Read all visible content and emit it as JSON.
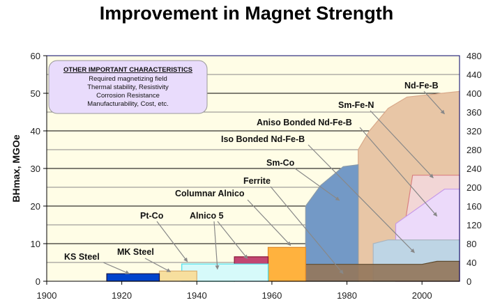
{
  "chart_data": {
    "type": "area",
    "title": "Improvement in Magnet Strength",
    "xlabel": "",
    "ylabel": "BHmax, MGOe",
    "y2label": "",
    "xlim": [
      1900,
      2010
    ],
    "ylim": [
      0,
      60
    ],
    "y2lim": [
      0,
      480
    ],
    "x_ticks": [
      "1900",
      "1920",
      "1940",
      "1960",
      "1980",
      "2000"
    ],
    "y_ticks": [
      "0",
      "10",
      "20",
      "30",
      "40",
      "50",
      "60"
    ],
    "y2_ticks": [
      "0",
      "40",
      "80",
      "120",
      "160",
      "200",
      "240",
      "280",
      "320",
      "360",
      "400",
      "440",
      "480"
    ],
    "grid": true,
    "legend": "none",
    "series": [
      {
        "name": "Nd-Fe-B",
        "color": "#e8c6a6",
        "stroke": "#d9a98a",
        "points": [
          [
            1983,
            0
          ],
          [
            1983,
            35
          ],
          [
            1986,
            40
          ],
          [
            1991,
            46
          ],
          [
            1996,
            49
          ],
          [
            2010,
            50.5
          ],
          [
            2010,
            0
          ]
        ]
      },
      {
        "name": "Sm-Co",
        "color": "#7399c6",
        "stroke": "#8a9aa8",
        "points": [
          [
            1969,
            0
          ],
          [
            1969,
            20
          ],
          [
            1973,
            25.5
          ],
          [
            1979,
            30.5
          ],
          [
            1983,
            31
          ],
          [
            1983,
            0
          ]
        ]
      },
      {
        "name": "Sm-Fe-N",
        "color": "#f2d6d6",
        "stroke": "#d98080",
        "points": [
          [
            1993,
            0
          ],
          [
            1997.5,
            28.2
          ],
          [
            2010,
            28.2
          ],
          [
            2010,
            0
          ]
        ]
      },
      {
        "name": "Aniso Bonded Nd-Fe-B",
        "color": "#ecdafa",
        "stroke": "#c79ae8",
        "points": [
          [
            1993,
            0
          ],
          [
            1993,
            15.3
          ],
          [
            2006,
            24.5
          ],
          [
            2010,
            24.5
          ],
          [
            2010,
            0
          ]
        ]
      },
      {
        "name": "Iso Bonded Nd-Fe-B",
        "color": "#bed5e5",
        "stroke": "#a9b5c0",
        "points": [
          [
            1987,
            0
          ],
          [
            1987,
            10
          ],
          [
            1991,
            11
          ],
          [
            2010,
            11
          ],
          [
            2010,
            0
          ]
        ]
      },
      {
        "name": "Ferrite",
        "color": "#94775c",
        "stroke": "#5e4a2e",
        "points": [
          [
            1960,
            0
          ],
          [
            1960,
            4.5
          ],
          [
            2000,
            4.5
          ],
          [
            2004,
            5.3
          ],
          [
            2010,
            5.3
          ],
          [
            2010,
            0
          ]
        ]
      },
      {
        "name": "Columnar Alnico",
        "color": "#ffb23e",
        "stroke": "#e08a2a",
        "points": [
          [
            1959,
            0
          ],
          [
            1959,
            9
          ],
          [
            1969,
            9
          ],
          [
            1969,
            0
          ]
        ]
      },
      {
        "name": "Alnico 5 (1950s)",
        "color": "#c24672",
        "stroke": "#8a1a3a",
        "points": [
          [
            1950,
            0
          ],
          [
            1950,
            6.5
          ],
          [
            1959,
            6.5
          ],
          [
            1959,
            0
          ]
        ]
      },
      {
        "name": "Alnico 5 (1940s)",
        "color": "#3ba14a",
        "stroke": "#1a6a25",
        "points": [
          [
            1940,
            0
          ],
          [
            1940,
            3.9
          ],
          [
            1950,
            3.9
          ],
          [
            1950,
            0
          ]
        ]
      },
      {
        "name": "Pt-Co",
        "color": "#d6fafa",
        "stroke": "#44e0ee",
        "points": [
          [
            1936,
            0
          ],
          [
            1936,
            4.6
          ],
          [
            1959,
            4.6
          ],
          [
            1959,
            0
          ]
        ]
      },
      {
        "name": "MK Steel",
        "color": "#f7df9e",
        "stroke": "#d9b070",
        "points": [
          [
            1930,
            0
          ],
          [
            1930,
            2.7
          ],
          [
            1940,
            2.7
          ],
          [
            1940,
            0
          ]
        ]
      },
      {
        "name": "KS Steel",
        "color": "#0044cc",
        "stroke": "#111144",
        "points": [
          [
            1916,
            0
          ],
          [
            1916,
            2
          ],
          [
            1930,
            2
          ],
          [
            1930,
            0
          ]
        ]
      }
    ],
    "annotations": [
      {
        "text": "KS Steel",
        "target": [
          1922,
          2
        ]
      },
      {
        "text": "MK Steel",
        "target": [
          1933,
          2.5
        ]
      },
      {
        "text": "Pt-Co",
        "target": [
          1937.5,
          5.2
        ]
      },
      {
        "text": "Alnico 5",
        "target": [
          1945.5,
          3.2
        ]
      },
      {
        "text": "Alnico 5",
        "target": [
          1953.5,
          6
        ]
      },
      {
        "text": "Columnar Alnico",
        "target": [
          1965,
          9.5
        ]
      },
      {
        "text": "Ferrite",
        "target": [
          1979,
          2
        ]
      },
      {
        "text": "Sm-Co",
        "target": [
          1978,
          21.5
        ]
      },
      {
        "text": "Iso Bonded Nd-Fe-B",
        "target": [
          1998,
          7.6
        ]
      },
      {
        "text": "Aniso Bonded Nd-Fe-B",
        "target": [
          2004,
          17.3
        ]
      },
      {
        "text": "Sm-Fe-N",
        "target": [
          2003,
          27.5
        ]
      },
      {
        "text": "Nd-Fe-B",
        "target": [
          2006,
          44.5
        ]
      }
    ],
    "note_box": {
      "heading": "OTHER IMPORTANT CHARACTERISTICS",
      "lines": [
        "Required magnetizing field",
        "Thermal stability, Resistivity",
        "Corrosion Resistance",
        "Manufacturability, Cost, etc."
      ]
    }
  },
  "colors": {
    "plot_bg": "#fffde6",
    "note_bg": "#e9dcfc",
    "arrow": "#888888"
  }
}
